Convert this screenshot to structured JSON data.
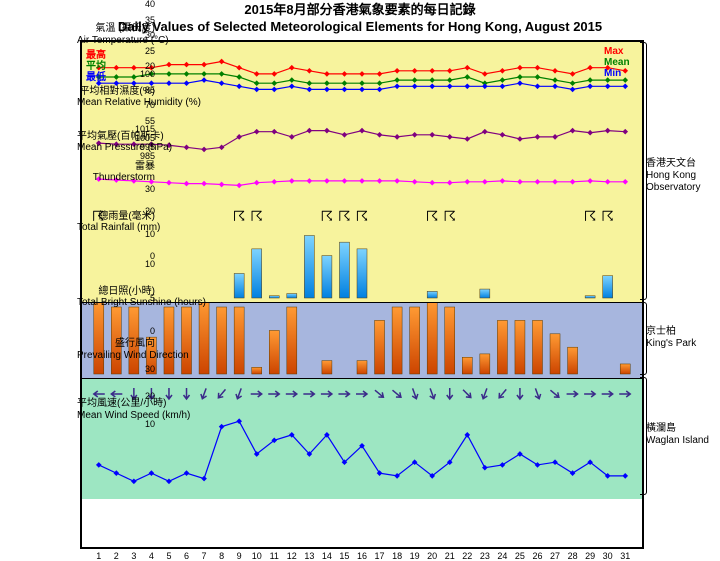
{
  "title": {
    "zh": "2015年8月部分香港氣象要素的每日記錄",
    "en": "Daily Values of Selected Meteorological Elements for Hong Kong, August 2015"
  },
  "days": 31,
  "colors": {
    "yellow_bg": "#f7f39d",
    "blue_bg": "#a7b6de",
    "green_bg": "#9de6c2",
    "red": "#ff0000",
    "green": "#008000",
    "blue": "#0000ff",
    "purple": "#800080",
    "magenta": "#ff00ff",
    "bar_blue_top": "#7dd3ff",
    "bar_blue_bot": "#0080e0",
    "bar_orange_top": "#ff9a33",
    "bar_orange_bot": "#cc4400",
    "arrow": "#3b2a8a"
  },
  "panels": [
    {
      "id": "temp",
      "bg": "yellow",
      "h": 70,
      "ylim": [
        20,
        40
      ],
      "yticks": [
        20,
        25,
        30,
        35,
        40
      ],
      "label": {
        "zh": "氣溫 (攝氏度)",
        "en": "Air Temperature (°C)"
      },
      "series": [
        {
          "name": "max",
          "color": "red",
          "marker": "diamond",
          "data": [
            33,
            33,
            33,
            33,
            34,
            34,
            34,
            35,
            33,
            31,
            31,
            33,
            32,
            31,
            31,
            31,
            31,
            32,
            32,
            32,
            32,
            33,
            31,
            32,
            33,
            33,
            32,
            31,
            33,
            33,
            32
          ]
        },
        {
          "name": "mean",
          "color": "green",
          "marker": "diamond",
          "data": [
            30,
            30,
            30,
            31,
            31,
            31,
            31,
            31,
            30,
            28,
            28,
            29,
            28,
            28,
            28,
            28,
            28,
            29,
            29,
            29,
            29,
            30,
            28,
            29,
            30,
            30,
            29,
            28,
            29,
            29,
            29
          ]
        },
        {
          "name": "min",
          "color": "blue",
          "marker": "diamond",
          "data": [
            28,
            28,
            28,
            28,
            28,
            28,
            29,
            28,
            27,
            26,
            26,
            27,
            26,
            26,
            26,
            26,
            26,
            27,
            27,
            27,
            27,
            27,
            27,
            27,
            28,
            27,
            27,
            26,
            27,
            27,
            27
          ]
        }
      ],
      "legend_left": [
        {
          "t": "最高",
          "c": "red"
        },
        {
          "t": "平均",
          "c": "green"
        },
        {
          "t": "最低",
          "c": "blue"
        }
      ],
      "legend_right": [
        {
          "t": "Max",
          "c": "red"
        },
        {
          "t": "Mean",
          "c": "green"
        },
        {
          "t": "Min",
          "c": "blue"
        }
      ]
    },
    {
      "id": "humidity",
      "bg": "yellow",
      "h": 55,
      "ylim": [
        55,
        100
      ],
      "yticks": [
        55,
        70,
        85,
        100
      ],
      "label": {
        "zh": "平均相對濕度(%)",
        "en": "Mean Relative Humidity (%)"
      },
      "series": [
        {
          "name": "humidity",
          "color": "purple",
          "marker": "diamond",
          "data": [
            74,
            73,
            73,
            73,
            72,
            70,
            68,
            70,
            80,
            85,
            85,
            80,
            86,
            86,
            82,
            86,
            82,
            80,
            82,
            82,
            80,
            78,
            85,
            82,
            78,
            80,
            80,
            86,
            84,
            86,
            85
          ]
        }
      ]
    },
    {
      "id": "pressure",
      "bg": "yellow",
      "h": 35,
      "ylim": [
        985,
        1015
      ],
      "yticks": [
        985,
        995,
        1005,
        1015
      ],
      "label": {
        "zh": "平均氣壓(百帕斯卡)",
        "en": "Mean Pressure (hPa)"
      },
      "series": [
        {
          "name": "pressure",
          "color": "magenta",
          "marker": "diamond",
          "data": [
            1006,
            1005,
            1004,
            1003,
            1002,
            1001,
            1001,
            1000,
            999,
            1002,
            1003,
            1004,
            1004,
            1004,
            1004,
            1004,
            1004,
            1004,
            1003,
            1002,
            1002,
            1003,
            1003,
            1004,
            1003,
            1003,
            1003,
            1003,
            1004,
            1003,
            1003
          ]
        }
      ]
    },
    {
      "id": "thunder",
      "bg": "yellow",
      "h": 25,
      "label": {
        "zh": "雷暴",
        "en": "Thunderstorm"
      },
      "symbol": "⛈",
      "marks": [
        0,
        0,
        0,
        0,
        0,
        0,
        0,
        0,
        1,
        1,
        0,
        0,
        0,
        1,
        1,
        1,
        0,
        0,
        0,
        1,
        1,
        0,
        0,
        0,
        0,
        0,
        0,
        0,
        1,
        1,
        0
      ]
    },
    {
      "id": "rain",
      "bg": "yellow",
      "h": 75,
      "ylim": [
        0,
        30
      ],
      "yticks": [
        0,
        10,
        20,
        30
      ],
      "label": {
        "zh": "總雨量(毫米)",
        "en": "Total Rainfall (mm)"
      },
      "bars": {
        "color_top": "bar_blue_top",
        "color_bot": "bar_blue_bot",
        "data": [
          0,
          0,
          0,
          0,
          0,
          0,
          0,
          0,
          11,
          22,
          1,
          2,
          28,
          19,
          25,
          22,
          0,
          0,
          0,
          3,
          0,
          0,
          4,
          0,
          0,
          0,
          0,
          0,
          1,
          10,
          0
        ]
      }
    },
    {
      "id": "sun",
      "bg": "blue",
      "h": 75,
      "ylim": [
        0,
        10
      ],
      "yticks": [
        0,
        5,
        10
      ],
      "label": {
        "zh": "總日照(小時)",
        "en": "Total Bright Sunshine (hours)"
      },
      "bars": {
        "color_top": "bar_orange_top",
        "color_bot": "bar_orange_bot",
        "data": [
          11,
          10,
          10,
          5.5,
          10,
          10,
          11,
          10,
          10,
          1,
          6.5,
          10,
          0,
          2,
          0,
          2,
          8,
          10,
          10,
          11,
          10,
          2.5,
          3,
          8,
          8,
          8,
          6,
          4,
          0,
          0,
          1.5
        ]
      }
    },
    {
      "id": "winddir",
      "bg": "green",
      "h": 30,
      "label": {
        "zh": "盛行風向",
        "en": "Prevailing Wind Direction"
      },
      "arrows": [
        270,
        270,
        180,
        180,
        180,
        180,
        200,
        220,
        200,
        90,
        90,
        90,
        90,
        90,
        90,
        90,
        130,
        130,
        160,
        160,
        180,
        135,
        200,
        220,
        180,
        160,
        130,
        90,
        90,
        90,
        90
      ]
    },
    {
      "id": "windspd",
      "bg": "green",
      "h": 90,
      "ylim": [
        0,
        30
      ],
      "yticks": [
        10,
        20,
        30
      ],
      "label": {
        "zh": "平均風速(公里/小時)",
        "en": "Mean Wind Speed (km/h)"
      },
      "series": [
        {
          "name": "windspeed",
          "color": "blue",
          "marker": "diamond",
          "data": [
            11,
            8,
            5,
            8,
            5,
            8,
            6,
            25,
            27,
            15,
            20,
            22,
            15,
            22,
            12,
            18,
            8,
            7,
            12,
            7,
            12,
            22,
            10,
            11,
            15,
            11,
            12,
            8,
            12,
            7,
            7
          ]
        }
      ]
    }
  ],
  "right_groups": [
    {
      "zh": "香港天文台",
      "en": "Hong Kong Observatory",
      "from": 0,
      "to": 5
    },
    {
      "zh": "京士柏",
      "en": "King's Park",
      "from": 5,
      "to": 6
    },
    {
      "zh": "橫瀾島",
      "en": "Waglan Island",
      "from": 6,
      "to": 8
    }
  ]
}
